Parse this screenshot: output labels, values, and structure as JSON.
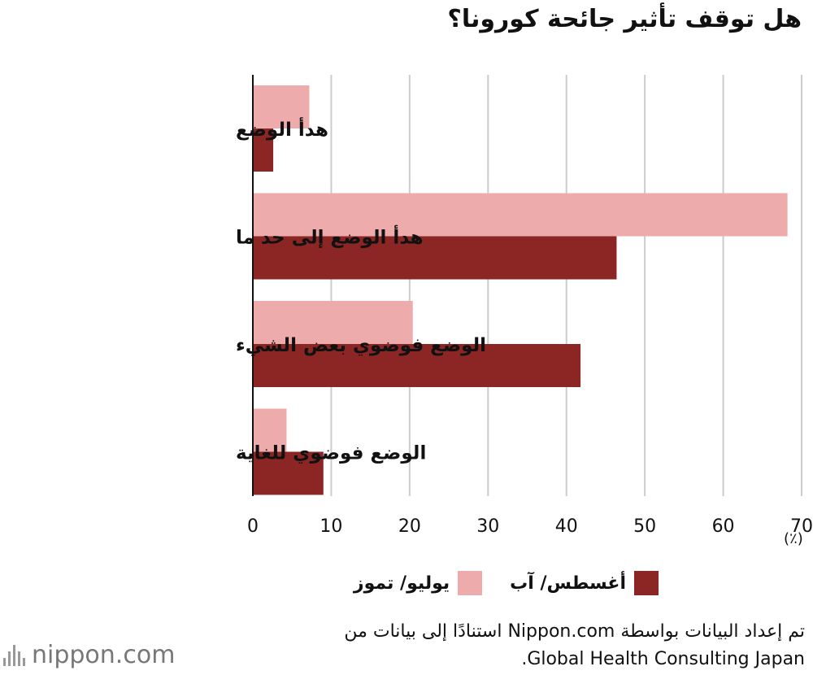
{
  "chart_data": {
    "type": "bar",
    "orientation": "horizontal",
    "title": "هل توقف تأثير جائحة كورونا؟",
    "unit_label": "(٪)",
    "categories": [
      "هدأ الوضع",
      "هدأ الوضع إلى حد ما",
      "الوضع فوضوي بعض الشيء",
      "الوضع فوضوي للغاية"
    ],
    "series": [
      {
        "name": "يوليو/ تموز",
        "color": "#eeabab",
        "values": [
          7.2,
          68.2,
          20.4,
          4.3
        ]
      },
      {
        "name": "أغسطس/ آب",
        "color": "#8b2624",
        "values": [
          2.6,
          46.4,
          41.8,
          9.0
        ]
      }
    ],
    "xlim": [
      0,
      70
    ],
    "ticks": [
      0,
      10,
      20,
      30,
      40,
      50,
      60,
      70
    ],
    "grid": true,
    "legend_position": "bottom"
  },
  "source": {
    "line1": "تم إعداد البيانات بواسطة Nippon.com استنادًا إلى بيانات من",
    "line2": "Global Health Consulting Japan."
  },
  "logo_text": "nippon.com"
}
